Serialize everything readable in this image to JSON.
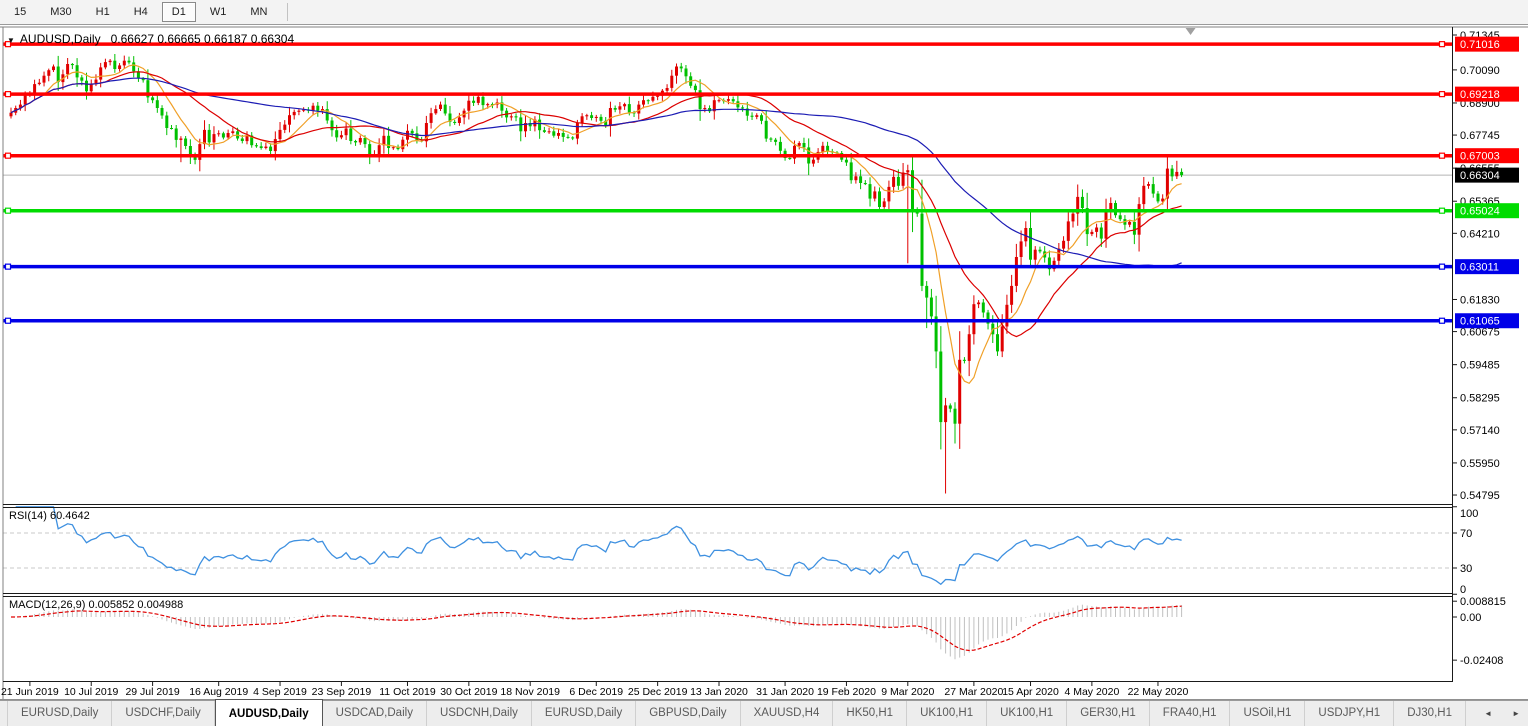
{
  "toolbar": {
    "timeframes": [
      "15",
      "M30",
      "H1",
      "H4",
      "D1",
      "W1",
      "MN"
    ],
    "active_timeframe": "D1"
  },
  "header": {
    "expander_icon": "▼",
    "symbol": "AUDUSD,Daily",
    "ohlc": "0.66627 0.66665 0.66187 0.66304"
  },
  "indicators": {
    "rsi": {
      "label_text": "RSI(14) 60.4642",
      "period": 14,
      "current_value": 60.4642,
      "levels": [
        70,
        30
      ],
      "axis_labels": [
        "100",
        "70",
        "30",
        "0"
      ],
      "axis_values": [
        100,
        70,
        30,
        0
      ],
      "line_color": "#3e90e0"
    },
    "macd": {
      "label_text": "MACD(12,26,9) 0.005852 0.004988",
      "fast": 12,
      "slow": 26,
      "signal": 9,
      "current_main": 0.005852,
      "current_signal": 0.004988,
      "axis_labels": [
        "0.008815",
        "0.00",
        "-0.02408"
      ],
      "histogram_color": "#c0c0c0",
      "signal_color": "#e00000"
    }
  },
  "time_axis": {
    "labels": [
      "21 Jun 2019",
      "10 Jul 2019",
      "29 Jul 2019",
      "16 Aug 2019",
      "4 Sep 2019",
      "23 Sep 2019",
      "11 Oct 2019",
      "30 Oct 2019",
      "18 Nov 2019",
      "6 Dec 2019",
      "25 Dec 2019",
      "13 Jan 2020",
      "31 Jan 2020",
      "19 Feb 2020",
      "9 Mar 2020",
      "27 Mar 2020",
      "15 Apr 2020",
      "4 May 2020",
      "22 May 2020"
    ],
    "tick_bars": [
      4,
      17,
      30,
      44,
      57,
      70,
      84,
      97,
      110,
      124,
      137,
      150,
      164,
      177,
      190,
      204,
      216,
      229,
      243
    ]
  },
  "tabs": {
    "items": [
      "EURUSD,Daily",
      "USDCHF,Daily",
      "AUDUSD,Daily",
      "USDCAD,Daily",
      "USDCNH,Daily",
      "EURUSD,Daily",
      "GBPUSD,Daily",
      "XAUUSD,H4",
      "HK50,H1",
      "UK100,H1",
      "UK100,H1",
      "GER30,H1",
      "FRA40,H1",
      "USOil,H1",
      "USDJPY,H1",
      "DJ30,H1"
    ],
    "active_index": 2,
    "scroll_left_icon": "◄",
    "scroll_right_icon": "►"
  },
  "chart_data": {
    "type": "candlestick",
    "symbol": "AUDUSD",
    "period": "Daily",
    "last_ohlc": {
      "open": 0.66627,
      "high": 0.66665,
      "low": 0.66187,
      "close": 0.66304
    },
    "first_open": 0.6842,
    "closes": [
      0.6855,
      0.6872,
      0.6884,
      0.6918,
      0.6921,
      0.6958,
      0.6963,
      0.6988,
      0.7008,
      0.7021,
      0.6965,
      0.6993,
      0.703,
      0.7026,
      0.6982,
      0.697,
      0.6932,
      0.6958,
      0.6974,
      0.7018,
      0.7037,
      0.7042,
      0.7012,
      0.7025,
      0.7042,
      0.7036,
      0.7004,
      0.6978,
      0.6972,
      0.691,
      0.69,
      0.6872,
      0.6845,
      0.68,
      0.6798,
      0.6757,
      0.6762,
      0.6735,
      0.6697,
      0.6685,
      0.6742,
      0.6793,
      0.6748,
      0.6778,
      0.6781,
      0.6766,
      0.6782,
      0.6788,
      0.6762,
      0.6753,
      0.6773,
      0.6738,
      0.6734,
      0.6728,
      0.6733,
      0.6717,
      0.676,
      0.6793,
      0.6812,
      0.6846,
      0.6858,
      0.6862,
      0.6866,
      0.6862,
      0.688,
      0.6862,
      0.6868,
      0.6827,
      0.6792,
      0.6766,
      0.6774,
      0.6798,
      0.6753,
      0.6748,
      0.6764,
      0.6742,
      0.67,
      0.6706,
      0.6738,
      0.6772,
      0.6728,
      0.6731,
      0.6724,
      0.6758,
      0.679,
      0.6781,
      0.6755,
      0.6752,
      0.6818,
      0.6853,
      0.6868,
      0.6884,
      0.6852,
      0.6822,
      0.6818,
      0.6838,
      0.6862,
      0.6898,
      0.689,
      0.6912,
      0.6882,
      0.6886,
      0.6884,
      0.6892,
      0.6862,
      0.6838,
      0.6842,
      0.6838,
      0.6788,
      0.6818,
      0.6806,
      0.683,
      0.6792,
      0.6786,
      0.6788,
      0.6772,
      0.6782,
      0.6768,
      0.6766,
      0.6762,
      0.6818,
      0.6842,
      0.6846,
      0.6836,
      0.684,
      0.6826,
      0.681,
      0.6872,
      0.6866,
      0.6878,
      0.6886,
      0.6856,
      0.6852,
      0.6884,
      0.69,
      0.6898,
      0.6912,
      0.6916,
      0.6934,
      0.6944,
      0.6988,
      0.7021,
      0.7014,
      0.6986,
      0.6952,
      0.6936,
      0.6868,
      0.6872,
      0.686,
      0.69,
      0.69,
      0.6898,
      0.6904,
      0.6896,
      0.6874,
      0.687,
      0.6844,
      0.684,
      0.6846,
      0.6826,
      0.6762,
      0.6758,
      0.675,
      0.6718,
      0.6692,
      0.669,
      0.6736,
      0.6746,
      0.673,
      0.6672,
      0.6686,
      0.6714,
      0.6736,
      0.6716,
      0.6712,
      0.671,
      0.6686,
      0.6676,
      0.6612,
      0.6626,
      0.6602,
      0.6598,
      0.6546,
      0.6572,
      0.6516,
      0.6536,
      0.6588,
      0.6624,
      0.6592,
      0.664,
      0.6648,
      0.6502,
      0.6492,
      0.6232,
      0.619,
      0.6122,
      0.5996,
      0.5742,
      0.5802,
      0.579,
      0.5736,
      0.5966,
      0.5962,
      0.6058,
      0.6166,
      0.6172,
      0.6136,
      0.6096,
      0.6058,
      0.5996,
      0.6086,
      0.6164,
      0.6232,
      0.6336,
      0.6392,
      0.644,
      0.6326,
      0.6362,
      0.6356,
      0.6334,
      0.6292,
      0.6322,
      0.6366,
      0.6394,
      0.6464,
      0.6492,
      0.6552,
      0.6512,
      0.6418,
      0.6426,
      0.6442,
      0.6402,
      0.6496,
      0.653,
      0.6486,
      0.6472,
      0.6452,
      0.6462,
      0.6416,
      0.6526,
      0.6592,
      0.6598,
      0.6564,
      0.6536,
      0.6546,
      0.6654,
      0.6626,
      0.6642,
      0.66304
    ],
    "low_overrides": {
      "36": 0.6677,
      "76": 0.667,
      "190": 0.6313,
      "193": 0.6213,
      "194": 0.608,
      "198": 0.5485,
      "200": 0.5665
    },
    "high_overrides": {
      "21": 0.7048,
      "141": 0.7032,
      "190": 0.6668,
      "247": 0.6682
    },
    "moving_averages": [
      {
        "period": 8,
        "color": "#f0a028"
      },
      {
        "period": 21,
        "color": "#dc0000"
      },
      {
        "period": 55,
        "color": "#1c1cb4"
      }
    ],
    "colors": {
      "up": "#e00000",
      "down": "#00c000"
    },
    "horizontal_lines": [
      {
        "price": 0.71016,
        "label": "0.71016",
        "color": "#ff0000"
      },
      {
        "price": 0.69218,
        "label": "0.69218",
        "color": "#ff0000"
      },
      {
        "price": 0.67003,
        "label": "0.67003",
        "color": "#ff0000"
      },
      {
        "price": 0.65024,
        "label": "0.65024",
        "color": "#00dc00"
      },
      {
        "price": 0.63011,
        "label": "0.63011",
        "color": "#0000e8"
      },
      {
        "price": 0.61065,
        "label": "0.61065",
        "color": "#0000e8"
      }
    ],
    "current_price": {
      "value": 0.66304,
      "label": "0.66304",
      "line_color": "#b4b4b4",
      "label_bg": "#000000"
    },
    "y_ticks": [
      "0.71345",
      "0.70090",
      "0.68900",
      "0.67745",
      "0.66555",
      "0.65365",
      "0.64210",
      "0.61830",
      "0.60675",
      "0.59485",
      "0.58295",
      "0.57140",
      "0.55950",
      "0.54795"
    ],
    "price_range": {
      "top": 0.71597,
      "bottom": 0.54461
    }
  }
}
